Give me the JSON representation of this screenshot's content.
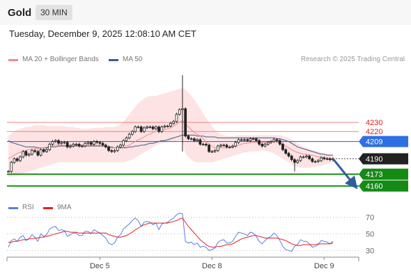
{
  "header": {
    "instrument": "Gold",
    "timeframe": "30 MIN",
    "datetime": "Tuesday, December 9, 2025 12:08:10 AM CET"
  },
  "legend": {
    "bollinger": {
      "label": "MA 20 + Bollinger Bands",
      "color": "#f08b8b"
    },
    "ma50": {
      "label": "MA 50",
      "color": "#3a5a8c"
    },
    "credit": "Research © 2025 Trading Central"
  },
  "rsi_legend": {
    "rsi": {
      "label": "RSI",
      "color": "#5b7be0"
    },
    "ma9": {
      "label": "9MA",
      "color": "#e02020"
    }
  },
  "chart_data": [
    {
      "type": "candlestick",
      "ylim": [
        4146,
        4292
      ],
      "xlim": [
        0,
        120
      ],
      "x_ticks": [
        {
          "label": "Dec 5",
          "x": 31
        },
        {
          "label": "Dec 8",
          "x": 69
        },
        {
          "label": "Dec 9",
          "x": 107
        }
      ],
      "levels": [
        {
          "value": 4230,
          "label": "4230",
          "style": "line",
          "color": "#f08080",
          "text_color": "#e02020"
        },
        {
          "value": 4220,
          "label": "4220",
          "style": "line",
          "color": "#f08080",
          "text_color": "#e02020"
        },
        {
          "value": 4209,
          "label": "4209",
          "style": "tag",
          "color": "#2f6fe4"
        },
        {
          "value": 4190,
          "label": "4190",
          "style": "current",
          "color": "#222222"
        },
        {
          "value": 4173,
          "label": "4173",
          "style": "tag",
          "color": "#158a15"
        },
        {
          "value": 4160,
          "label": "4160",
          "style": "tag",
          "color": "#158a15"
        }
      ],
      "forecast_arrow": {
        "from": [
          110,
          4190
        ],
        "to": [
          117,
          4162
        ],
        "color": "#2e5e9e"
      },
      "closes": [
        4176,
        4186,
        4190,
        4188,
        4192,
        4198,
        4194,
        4195,
        4199,
        4198,
        4194,
        4200,
        4198,
        4200,
        4206,
        4209,
        4210,
        4207,
        4208,
        4208,
        4203,
        4204,
        4206,
        4206,
        4204,
        4204,
        4207,
        4208,
        4206,
        4209,
        4208,
        4207,
        4205,
        4203,
        4199,
        4198,
        4199,
        4203,
        4205,
        4210,
        4213,
        4217,
        4220,
        4225,
        4225,
        4220,
        4224,
        4225,
        4225,
        4223,
        4225,
        4220,
        4225,
        4226,
        4226,
        4229,
        4231,
        4239,
        4244,
        4245,
        4215,
        4212,
        4212,
        4210,
        4211,
        4206,
        4206,
        4205,
        4198,
        4198,
        4199,
        4204,
        4205,
        4205,
        4203,
        4203,
        4204,
        4208,
        4211,
        4211,
        4211,
        4210,
        4212,
        4212,
        4210,
        4206,
        4204,
        4206,
        4208,
        4209,
        4211,
        4210,
        4206,
        4200,
        4196,
        4193,
        4189,
        4186,
        4188,
        4192,
        4192,
        4193,
        4190,
        4187,
        4187,
        4188,
        4191,
        4190,
        4190,
        4189,
        4190
      ],
      "spikes": [
        {
          "index": 0,
          "low": 4176
        },
        {
          "index": 59,
          "high": 4282,
          "low": 4198
        },
        {
          "index": 97,
          "low": 4176
        }
      ],
      "ma20": [
        4190,
        4192,
        4194,
        4196,
        4197,
        4198,
        4199,
        4200,
        4201,
        4201,
        4201,
        4202,
        4202,
        4203,
        4204,
        4204,
        4205,
        4205,
        4205,
        4205,
        4205,
        4205,
        4205,
        4205,
        4205,
        4205,
        4205,
        4205,
        4205,
        4205,
        4205,
        4205,
        4204,
        4204,
        4203,
        4202,
        4202,
        4202,
        4202,
        4203,
        4204,
        4205,
        4207,
        4209,
        4211,
        4212,
        4214,
        4216,
        4217,
        4219,
        4220,
        4220,
        4221,
        4222,
        4223,
        4224,
        4226,
        4228,
        4230,
        4232,
        4228,
        4225,
        4222,
        4219,
        4217,
        4215,
        4212,
        4209,
        4206,
        4204,
        4202,
        4202,
        4202,
        4202,
        4202,
        4202,
        4203,
        4204,
        4205,
        4206,
        4207,
        4207,
        4208,
        4208,
        4208,
        4208,
        4208,
        4208,
        4208,
        4208,
        4209,
        4208,
        4207,
        4206,
        4204,
        4202,
        4200,
        4198,
        4197,
        4196,
        4195,
        4195,
        4194,
        4194,
        4193,
        4192,
        4192,
        4191,
        4191,
        4190,
        4190
      ],
      "ma50": [
        4210,
        4208,
        4207,
        4206,
        4205,
        4204,
        4203,
        4203,
        4203,
        4203,
        4202,
        4202,
        4202,
        4202,
        4203,
        4203,
        4203,
        4204,
        4204,
        4204,
        4204,
        4204,
        4204,
        4204,
        4204,
        4204,
        4204,
        4204,
        4204,
        4204,
        4204,
        4204,
        4204,
        4203,
        4203,
        4203,
        4202,
        4202,
        4202,
        4202,
        4202,
        4203,
        4203,
        4204,
        4204,
        4205,
        4205,
        4206,
        4207,
        4207,
        4208,
        4209,
        4210,
        4210,
        4211,
        4212,
        4213,
        4214,
        4215,
        4216,
        4216,
        4216,
        4216,
        4216,
        4215,
        4215,
        4215,
        4214,
        4214,
        4214,
        4214,
        4213,
        4213,
        4213,
        4213,
        4213,
        4213,
        4213,
        4213,
        4213,
        4213,
        4213,
        4213,
        4213,
        4213,
        4213,
        4213,
        4213,
        4213,
        4213,
        4213,
        4212,
        4212,
        4211,
        4210,
        4209,
        4207,
        4205,
        4203,
        4202,
        4201,
        4200,
        4199,
        4198,
        4197,
        4196,
        4195,
        4195,
        4194,
        4194,
        4194
      ],
      "bb_upper": [
        4215,
        4218,
        4220,
        4222,
        4223,
        4224,
        4225,
        4225,
        4226,
        4227,
        4227,
        4227,
        4227,
        4226,
        4226,
        4226,
        4226,
        4226,
        4226,
        4226,
        4225,
        4225,
        4225,
        4224,
        4224,
        4223,
        4223,
        4223,
        4223,
        4224,
        4224,
        4224,
        4224,
        4225,
        4225,
        4225,
        4225,
        4226,
        4228,
        4231,
        4235,
        4239,
        4243,
        4247,
        4251,
        4254,
        4256,
        4258,
        4259,
        4259,
        4259,
        4260,
        4261,
        4262,
        4263,
        4264,
        4265,
        4266,
        4267,
        4268,
        4266,
        4263,
        4259,
        4255,
        4250,
        4245,
        4240,
        4235,
        4230,
        4226,
        4222,
        4219,
        4217,
        4216,
        4215,
        4215,
        4215,
        4215,
        4216,
        4216,
        4216,
        4216,
        4216,
        4216,
        4216,
        4216,
        4216,
        4216,
        4216,
        4216,
        4216,
        4216,
        4216,
        4215,
        4214,
        4213,
        4211,
        4209,
        4207,
        4205,
        4203,
        4202,
        4201,
        4200,
        4199,
        4198,
        4197,
        4196,
        4196,
        4195,
        4195
      ],
      "bb_lower": [
        4170,
        4170,
        4171,
        4172,
        4173,
        4174,
        4175,
        4176,
        4177,
        4178,
        4179,
        4180,
        4181,
        4182,
        4183,
        4184,
        4185,
        4186,
        4186,
        4186,
        4186,
        4186,
        4186,
        4186,
        4186,
        4186,
        4186,
        4186,
        4186,
        4186,
        4186,
        4186,
        4186,
        4186,
        4186,
        4186,
        4186,
        4186,
        4186,
        4186,
        4187,
        4188,
        4189,
        4191,
        4193,
        4195,
        4197,
        4199,
        4201,
        4203,
        4205,
        4206,
        4207,
        4208,
        4208,
        4209,
        4209,
        4210,
        4210,
        4210,
        4196,
        4192,
        4189,
        4187,
        4186,
        4186,
        4186,
        4186,
        4186,
        4186,
        4187,
        4188,
        4189,
        4190,
        4191,
        4192,
        4193,
        4194,
        4195,
        4196,
        4197,
        4197,
        4198,
        4198,
        4198,
        4199,
        4199,
        4199,
        4198,
        4197,
        4196,
        4194,
        4192,
        4190,
        4188,
        4186,
        4184,
        4182,
        4181,
        4180,
        4180,
        4180,
        4180,
        4181,
        4181,
        4182,
        4182,
        4183,
        4184,
        4185,
        4186
      ]
    },
    {
      "type": "line",
      "title": "RSI",
      "ylim": [
        22,
        78
      ],
      "y_ticks": [
        70,
        50,
        30
      ],
      "series": [
        {
          "name": "RSI",
          "color": "#5b7be0",
          "values": [
            34,
            42,
            44,
            41,
            46,
            48,
            42,
            44,
            49,
            46,
            41,
            50,
            47,
            49,
            56,
            58,
            59,
            54,
            55,
            54,
            47,
            49,
            51,
            51,
            48,
            48,
            53,
            53,
            50,
            55,
            53,
            51,
            48,
            45,
            39,
            37,
            39,
            46,
            49,
            56,
            59,
            62,
            66,
            69,
            66,
            59,
            64,
            65,
            64,
            61,
            63,
            55,
            62,
            63,
            64,
            67,
            69,
            73,
            75,
            74,
            41,
            39,
            40,
            37,
            39,
            34,
            35,
            34,
            30,
            31,
            33,
            40,
            42,
            43,
            39,
            39,
            41,
            47,
            52,
            51,
            50,
            48,
            52,
            51,
            47,
            41,
            38,
            42,
            45,
            47,
            51,
            48,
            42,
            35,
            31,
            30,
            29,
            35,
            37,
            43,
            41,
            41,
            38,
            34,
            35,
            37,
            42,
            41,
            40,
            38,
            41
          ]
        },
        {
          "name": "9MA",
          "color": "#e02020",
          "values": [
            40,
            40,
            41,
            41,
            42,
            43,
            43,
            44,
            44,
            45,
            45,
            46,
            46,
            47,
            48,
            49,
            50,
            51,
            52,
            53,
            53,
            52,
            52,
            52,
            51,
            51,
            51,
            51,
            51,
            51,
            51,
            51,
            51,
            51,
            49,
            48,
            47,
            46,
            46,
            47,
            48,
            50,
            52,
            55,
            57,
            59,
            61,
            62,
            63,
            63,
            63,
            63,
            63,
            63,
            63,
            64,
            65,
            66,
            68,
            69,
            64,
            59,
            55,
            51,
            47,
            43,
            40,
            37,
            35,
            34,
            34,
            35,
            35,
            36,
            37,
            37,
            38,
            40,
            42,
            44,
            45,
            46,
            47,
            48,
            48,
            47,
            46,
            45,
            45,
            45,
            45,
            45,
            44,
            43,
            42,
            40,
            38,
            37,
            36,
            36,
            37,
            37,
            37,
            37,
            37,
            38,
            38,
            38,
            38,
            38,
            39
          ]
        }
      ]
    }
  ]
}
